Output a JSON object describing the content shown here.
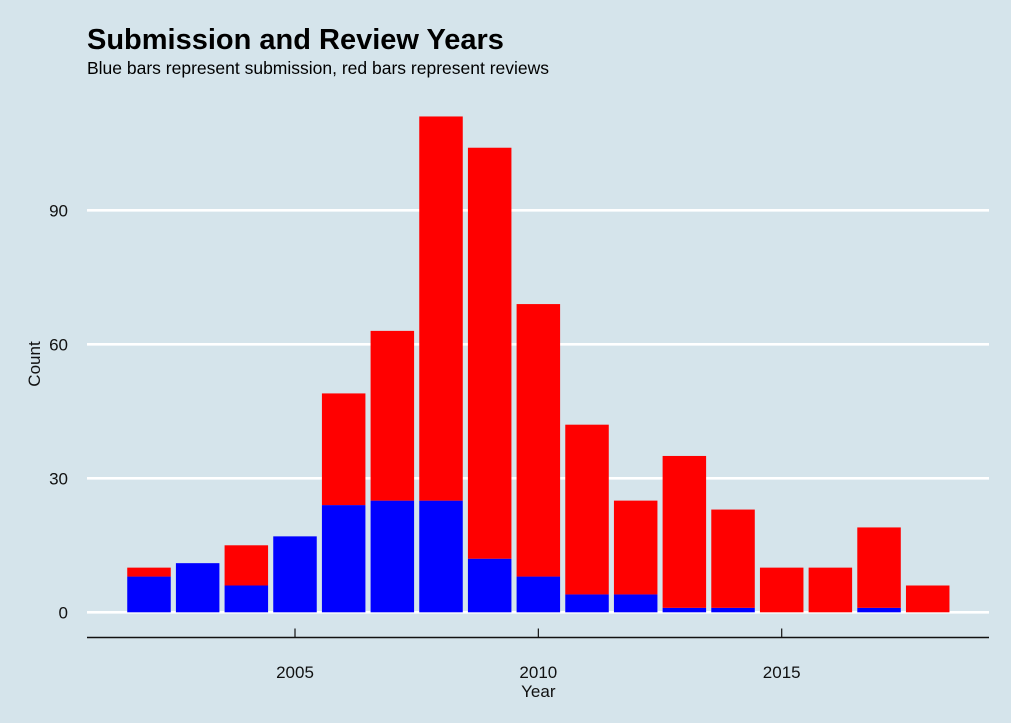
{
  "chart_data": {
    "type": "bar",
    "stacked": true,
    "title": "Submission and Review Years",
    "subtitle": "Blue bars represent submission, red bars represent reviews",
    "xlabel": "Year",
    "ylabel": "Count",
    "categories": [
      2002,
      2003,
      2004,
      2005,
      2006,
      2007,
      2008,
      2009,
      2010,
      2011,
      2012,
      2013,
      2014,
      2015,
      2016,
      2017,
      2018
    ],
    "series": [
      {
        "name": "Submission",
        "color": "#0000ff",
        "values": [
          8,
          11,
          6,
          17,
          24,
          25,
          25,
          12,
          8,
          4,
          4,
          1,
          1,
          0,
          0,
          1,
          0
        ]
      },
      {
        "name": "Review",
        "color": "#ff0000",
        "values": [
          2,
          0,
          9,
          0,
          25,
          38,
          86,
          92,
          61,
          38,
          21,
          34,
          22,
          10,
          10,
          18,
          6
        ]
      }
    ],
    "totals": [
      10,
      11,
      15,
      17,
      49,
      63,
      111,
      104,
      69,
      42,
      25,
      35,
      23,
      10,
      10,
      19,
      6
    ],
    "xlim": [
      2000.9,
      2019.4
    ],
    "ylim": [
      0,
      112
    ],
    "xticks": [
      2005,
      2010,
      2015
    ],
    "xtick_labels": [
      "2005",
      "2010",
      "2015"
    ],
    "yticks": [
      0,
      30,
      60,
      90
    ],
    "ytick_labels": [
      "0",
      "30",
      "60",
      "90"
    ],
    "grid": "horizontal",
    "legend": "none",
    "background": "#d5e4eb",
    "gridline_color": "#ffffff"
  }
}
